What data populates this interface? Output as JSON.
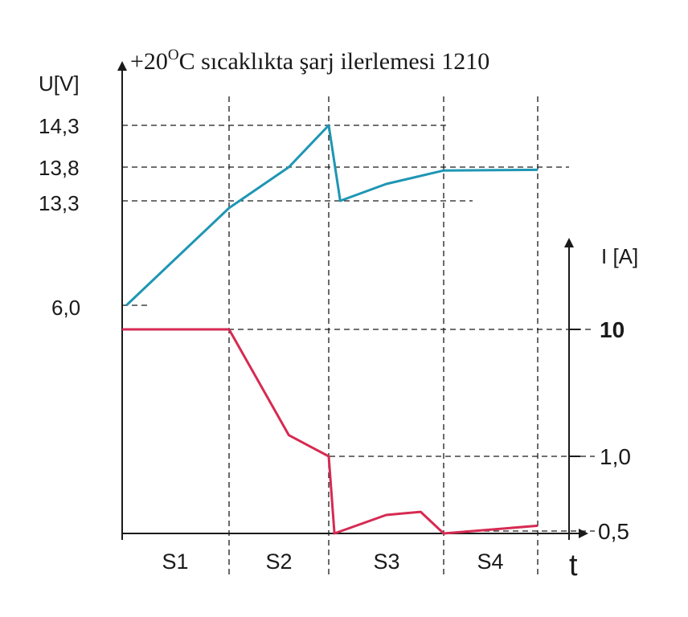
{
  "chart_data": {
    "type": "line",
    "title": {
      "prefix": "+20",
      "superscript": "O",
      "suffix": "C sıcaklıkta şarj ilerlemesi 1210"
    },
    "ylabel_left": "U[V]",
    "ylabel_right": "I [A]",
    "xlabel": "t",
    "stages": [
      "S1",
      "S2",
      "S3",
      "S4"
    ],
    "voltage_ticks": [
      "14,3",
      "13,8",
      "13,3",
      "6,0"
    ],
    "current_ticks": [
      "10",
      "1,0",
      "0,5"
    ],
    "series": [
      {
        "name": "U",
        "color": "#1e96b4",
        "points": [
          [
            0.04,
            6.0
          ],
          [
            1.0,
            12.8
          ],
          [
            1.6,
            13.8
          ],
          [
            2.0,
            14.3
          ],
          [
            2.1,
            13.3
          ],
          [
            2.5,
            13.55
          ],
          [
            3.0,
            13.75
          ],
          [
            4.0,
            13.76
          ]
        ]
      },
      {
        "name": "I",
        "color": "#d62a52",
        "points": [
          [
            0.0,
            10.0
          ],
          [
            1.0,
            10.0
          ],
          [
            1.6,
            2.5
          ],
          [
            2.0,
            1.0
          ],
          [
            2.05,
            0.5
          ],
          [
            2.5,
            0.62
          ],
          [
            2.8,
            0.64
          ],
          [
            3.0,
            0.5
          ],
          [
            4.0,
            0.55
          ]
        ]
      }
    ],
    "x_range": [
      0,
      4.4
    ],
    "legend": "none",
    "grid": "dashed reference lines"
  }
}
